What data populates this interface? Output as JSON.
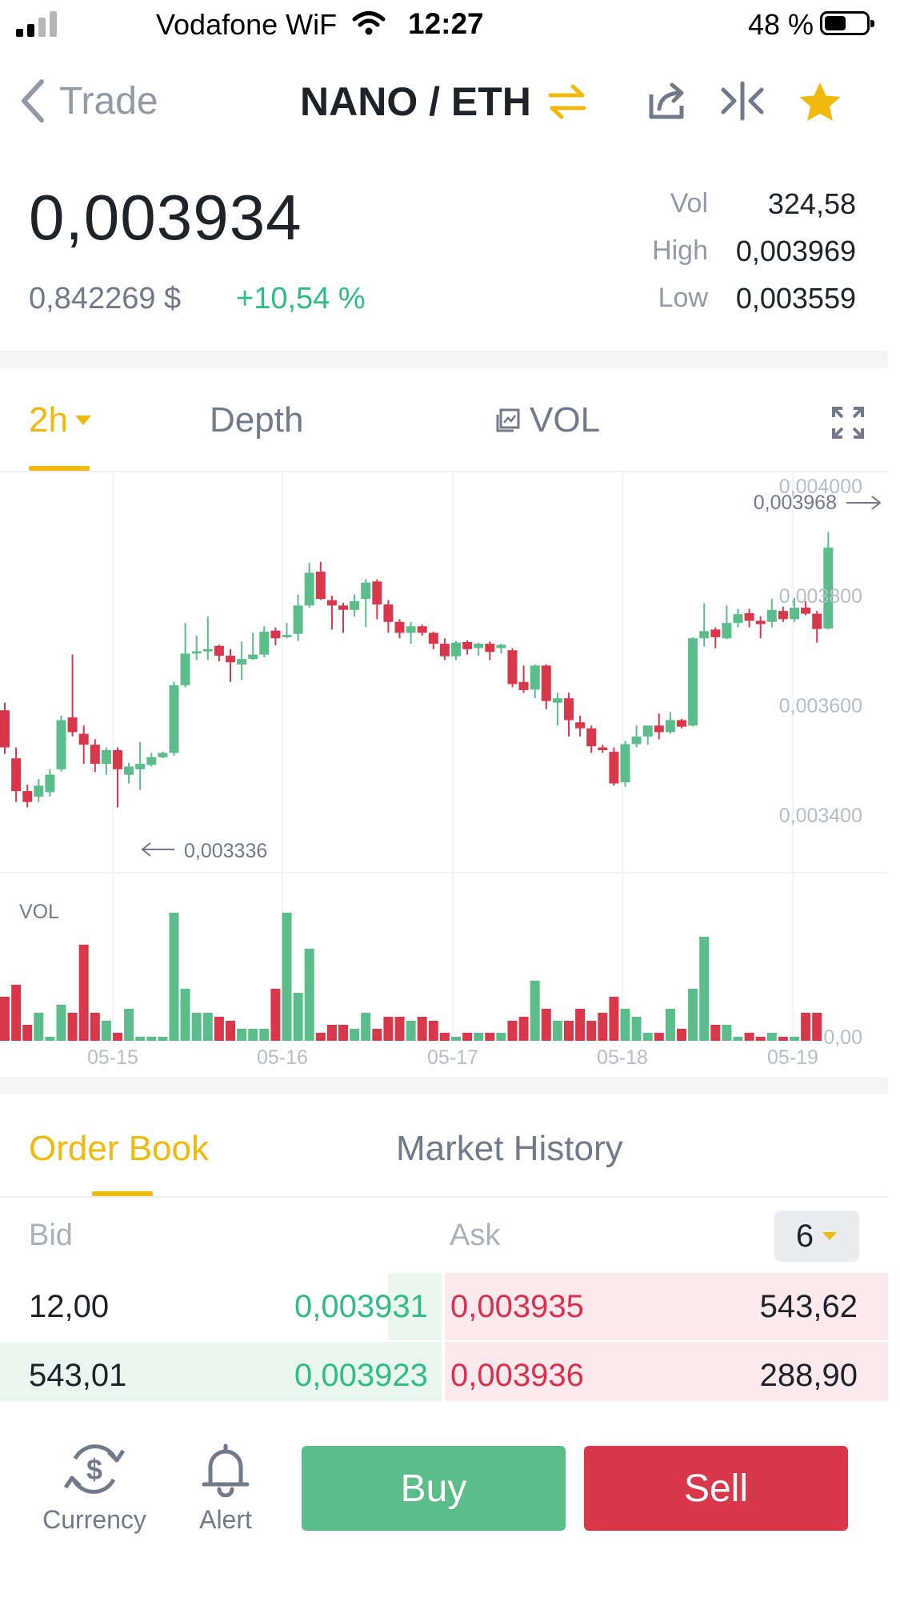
{
  "status_bar": {
    "carrier": "Vodafone WiF",
    "time": "12:27",
    "battery": "48 %"
  },
  "header": {
    "back_label": "Trade",
    "pair": "NANO / ETH",
    "icons": [
      "chevron-left-icon",
      "swap-icon",
      "share-icon",
      "compare-icon",
      "star-icon"
    ],
    "accent_color": "#f0b90b"
  },
  "ticker": {
    "price": "0,003934",
    "fiat_price": "0,842269 $",
    "change": "+10,54 %",
    "stats": [
      {
        "label": "Vol",
        "value": "324,58"
      },
      {
        "label": "High",
        "value": "0,003969"
      },
      {
        "label": "Low",
        "value": "0,003559"
      }
    ]
  },
  "chart_tabs": {
    "interval": "2h",
    "depth": "Depth",
    "vol": "VOL"
  },
  "chart_data": {
    "type": "candlestick",
    "price_ticks": [
      "0,004000",
      "0,003800",
      "0,003600",
      "0,003400"
    ],
    "x_ticks": [
      "05-15",
      "05-16",
      "05-17",
      "05-18",
      "05-19"
    ],
    "max_marker": "0,003968",
    "min_marker": "0,003336",
    "vol_label": "VOL",
    "vol_axis_label": "0,00",
    "up_color": "#5bbd8a",
    "down_color": "#d9384b"
  },
  "order_book": {
    "tabs": [
      "Order Book",
      "Market History"
    ],
    "bid_label": "Bid",
    "ask_label": "Ask",
    "precision": "6",
    "rows": [
      {
        "bid_qty": "12,00",
        "bid_price": "0,003931",
        "ask_price": "0,003935",
        "ask_qty": "543,62"
      },
      {
        "bid_qty": "543,01",
        "bid_price": "0,003923",
        "ask_price": "0,003936",
        "ask_qty": "288,90"
      }
    ]
  },
  "bottom_bar": {
    "currency_label": "Currency",
    "alert_label": "Alert",
    "buy_label": "Buy",
    "sell_label": "Sell"
  }
}
